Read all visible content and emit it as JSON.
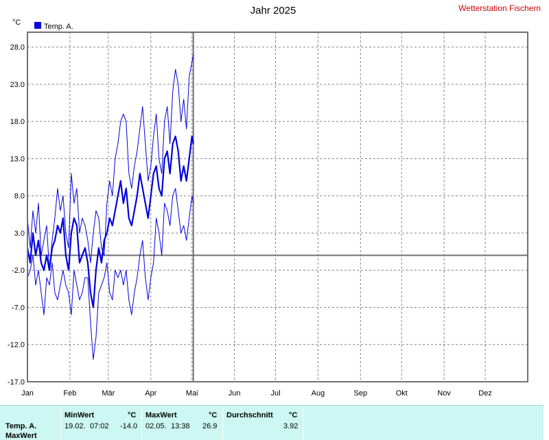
{
  "header": {
    "title": "Jahr 2025",
    "station": "Wetterstation Fischern",
    "unit": "°C",
    "legend_label": "Temp. A."
  },
  "colors": {
    "series": "#0000dd",
    "grid": "#808080",
    "zero_line": "#707070",
    "station": "#cc0000",
    "panel": "#ccf7f3"
  },
  "chart_data": {
    "type": "line",
    "title": "Jahr 2025",
    "ylabel": "°C",
    "ylim": [
      -17,
      30
    ],
    "yticks": [
      28,
      23,
      18,
      13,
      8,
      3,
      -2,
      -7,
      -12,
      -17
    ],
    "ytick_labels": [
      "28.0",
      "23.0",
      "18.0",
      "13.0",
      "8.0",
      "3.0",
      "-2.0",
      "-7.0",
      "-12.0",
      "-17.0"
    ],
    "xlim": [
      1,
      366
    ],
    "month_ticks": [
      1,
      32,
      60,
      91,
      121,
      152,
      182,
      213,
      244,
      274,
      305,
      335
    ],
    "month_labels": [
      "Jan",
      "Feb",
      "Mär",
      "Apr",
      "Mai",
      "Jun",
      "Jul",
      "Aug",
      "Sep",
      "Okt",
      "Nov",
      "Dez"
    ],
    "grid": true,
    "legend_position": "top-left",
    "series": [
      {
        "name": "Temp. A.",
        "role": "max",
        "x": [
          1,
          3,
          5,
          7,
          9,
          11,
          13,
          15,
          17,
          19,
          21,
          23,
          25,
          27,
          29,
          31,
          33,
          35,
          37,
          39,
          41,
          43,
          45,
          47,
          49,
          51,
          53,
          55,
          57,
          59,
          61,
          63,
          65,
          67,
          69,
          71,
          73,
          75,
          77,
          79,
          81,
          83,
          85,
          87,
          89,
          91,
          93,
          95,
          97,
          99,
          101,
          103,
          105,
          107,
          109,
          111,
          113,
          115,
          117,
          119,
          121,
          122
        ],
        "y": [
          5,
          1,
          6,
          3,
          7,
          0,
          2,
          4,
          -2,
          2,
          5,
          9,
          6,
          8,
          3,
          1,
          11,
          7,
          9,
          3,
          5,
          4,
          2,
          -1,
          3,
          6,
          5,
          1,
          0,
          7,
          10,
          8,
          13,
          15,
          18,
          19,
          18,
          11,
          9,
          12,
          14,
          17,
          20,
          15,
          10,
          12,
          16,
          19,
          13,
          11,
          18,
          20,
          15,
          22,
          25,
          23,
          18,
          21,
          17,
          24,
          26,
          27
        ]
      },
      {
        "name": "Temp. A.",
        "role": "mean",
        "x": [
          1,
          3,
          5,
          7,
          9,
          11,
          13,
          15,
          17,
          19,
          21,
          23,
          25,
          27,
          29,
          31,
          33,
          35,
          37,
          39,
          41,
          43,
          45,
          47,
          49,
          51,
          53,
          55,
          57,
          59,
          61,
          63,
          65,
          67,
          69,
          71,
          73,
          75,
          77,
          79,
          81,
          83,
          85,
          87,
          89,
          91,
          93,
          95,
          97,
          99,
          101,
          103,
          105,
          107,
          109,
          111,
          113,
          115,
          117,
          119,
          121,
          122
        ],
        "y": [
          1,
          -1,
          3,
          0,
          2,
          -1,
          -2,
          0,
          -2,
          1,
          2,
          4,
          3,
          5,
          0,
          -2,
          3,
          5,
          4,
          -1,
          0,
          1,
          -1,
          -5,
          -7,
          -2,
          1,
          -1,
          2,
          3,
          5,
          4,
          6,
          8,
          10,
          7,
          9,
          5,
          4,
          6,
          8,
          11,
          9,
          7,
          5,
          8,
          11,
          12,
          9,
          8,
          13,
          14,
          11,
          15,
          16,
          14,
          10,
          12,
          10,
          13,
          16,
          15
        ]
      },
      {
        "name": "Temp. A.",
        "role": "min",
        "x": [
          1,
          3,
          5,
          7,
          9,
          11,
          13,
          15,
          17,
          19,
          21,
          23,
          25,
          27,
          29,
          31,
          33,
          35,
          37,
          39,
          41,
          43,
          45,
          47,
          49,
          51,
          53,
          55,
          57,
          59,
          61,
          63,
          65,
          67,
          69,
          71,
          73,
          75,
          77,
          79,
          81,
          83,
          85,
          87,
          89,
          91,
          93,
          95,
          97,
          99,
          101,
          103,
          105,
          107,
          109,
          111,
          113,
          115,
          117,
          119,
          121,
          122
        ],
        "y": [
          -3,
          -2,
          0,
          -4,
          -2,
          -5,
          -8,
          -3,
          -4,
          -1,
          -5,
          -6,
          -4,
          -2,
          -4,
          -5,
          -8,
          -2,
          -4,
          -6,
          -5,
          -3,
          -3,
          -9,
          -14,
          -11,
          -5,
          -4,
          -3,
          -1,
          -5,
          -6,
          -2,
          -3,
          -2,
          -4,
          -2,
          -6,
          -8,
          -5,
          -3,
          0,
          2,
          -3,
          -6,
          -3,
          -1,
          5,
          3,
          0,
          7,
          6,
          4,
          8,
          9,
          6,
          3,
          4,
          2,
          5,
          8,
          7
        ]
      }
    ]
  },
  "stats": {
    "row_label": "Temp. A.",
    "row_label2": "MaxWert",
    "min": {
      "label": "MinWert",
      "unit": "°C",
      "date": "19.02.",
      "time": "07:02",
      "value": "-14.0"
    },
    "max": {
      "label": "MaxWert",
      "unit": "°C",
      "date": "02.05.",
      "time": "13:38",
      "value": "26.9"
    },
    "avg": {
      "label": "Durchschnitt",
      "unit": "°C",
      "value": "3.92"
    }
  }
}
